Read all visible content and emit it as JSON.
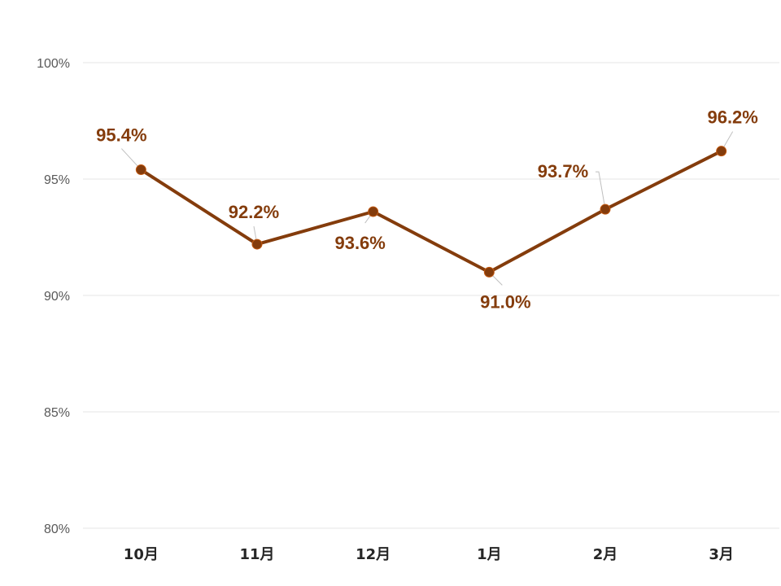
{
  "chart_data": {
    "type": "line",
    "categories": [
      "10月",
      "11月",
      "12月",
      "1月",
      "2月",
      "3月"
    ],
    "series": [
      {
        "values": [
          95.4,
          92.2,
          93.6,
          91.0,
          93.7,
          96.2
        ]
      }
    ],
    "data_labels": [
      "95.4%",
      "92.2%",
      "93.6%",
      "91.0%",
      "93.7%",
      "96.2%"
    ],
    "y_ticks": [
      "80%",
      "85%",
      "90%",
      "95%",
      "100%"
    ],
    "ylim": [
      80,
      100
    ],
    "y_unit": "%",
    "grid": true,
    "legend": "none",
    "colors": {
      "line": "#843c0c",
      "label": "#843c0c",
      "grid": "#e6e6e6",
      "marker_edge": "#c55a11"
    }
  }
}
